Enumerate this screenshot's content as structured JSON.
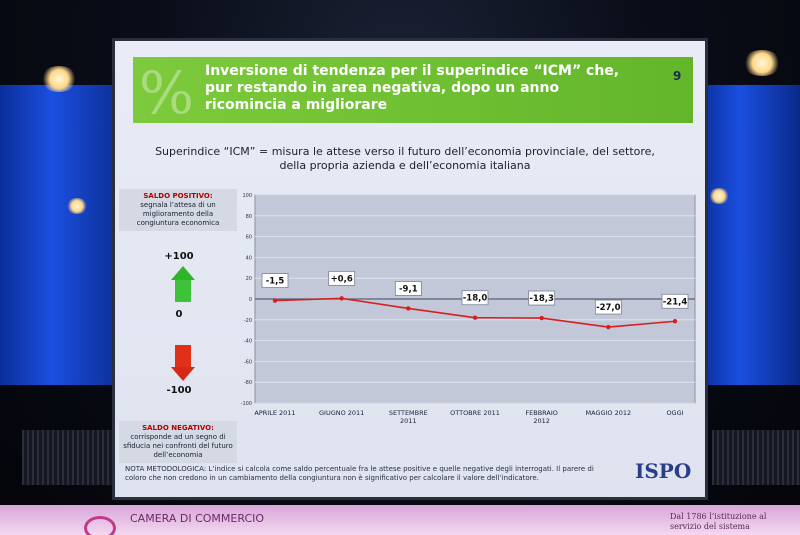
{
  "slide": {
    "title": "Inversione di tendenza per il superindice “ICM” che, pur restando in area negativa, dopo un anno ricomincia a migliorare",
    "page_number": "9",
    "subtitle": "Superindice “ICM” = misura le attese verso il futuro dell’economia provinciale, del settore, della propria azienda e dell’economia italiana",
    "saldo_positivo_label": "SALDO POSITIVO:",
    "saldo_positivo_text": "segnala l’attesa di un miglioramento della congiuntura economica",
    "saldo_negativo_label": "SALDO NEGATIVO:",
    "saldo_negativo_text": "corrisponde ad un segno di sfiducia nei confronti del futuro dell’economia",
    "scale_top": "+100",
    "scale_mid": "0",
    "scale_bottom": "-100",
    "methodology": "NOTA METODOLOGICA: L’indice si calcola come saldo percentuale fra le attese positive e quelle negative degli interrogati. Il parere di coloro che non credono in un cambiamento della congiuntura non è significativo per calcolare il valore dell’indicatore.",
    "logo": "ISPO"
  },
  "venue": {
    "left_text": "CAMERA DI COMMERCIO",
    "right_text": "Dal 1786 l’istituzione al servizio del sistema"
  },
  "colors": {
    "header_green": "#6cbe30",
    "line_red": "#d81e1e",
    "plot_bg": "#c2c8d8"
  },
  "chart_data": {
    "type": "line",
    "categories": [
      "APRILE 2011",
      "GIUGNO 2011",
      "SETTEMBRE 2011",
      "OTTOBRE 2011",
      "FEBBRAIO 2012",
      "MAGGIO 2012",
      "OGGI"
    ],
    "values": [
      -1.5,
      0.6,
      -9.1,
      -18.0,
      -18.3,
      -27.0,
      -21.4
    ],
    "value_labels": [
      "-1,5",
      "+0,6",
      "-9,1",
      "-18,0",
      "-18,3",
      "-27,0",
      "-21,4"
    ],
    "ylim": [
      -100,
      100
    ],
    "yticks": [
      100,
      80,
      60,
      40,
      20,
      0,
      -20,
      -40,
      -60,
      -80,
      -100
    ],
    "grid": true
  }
}
